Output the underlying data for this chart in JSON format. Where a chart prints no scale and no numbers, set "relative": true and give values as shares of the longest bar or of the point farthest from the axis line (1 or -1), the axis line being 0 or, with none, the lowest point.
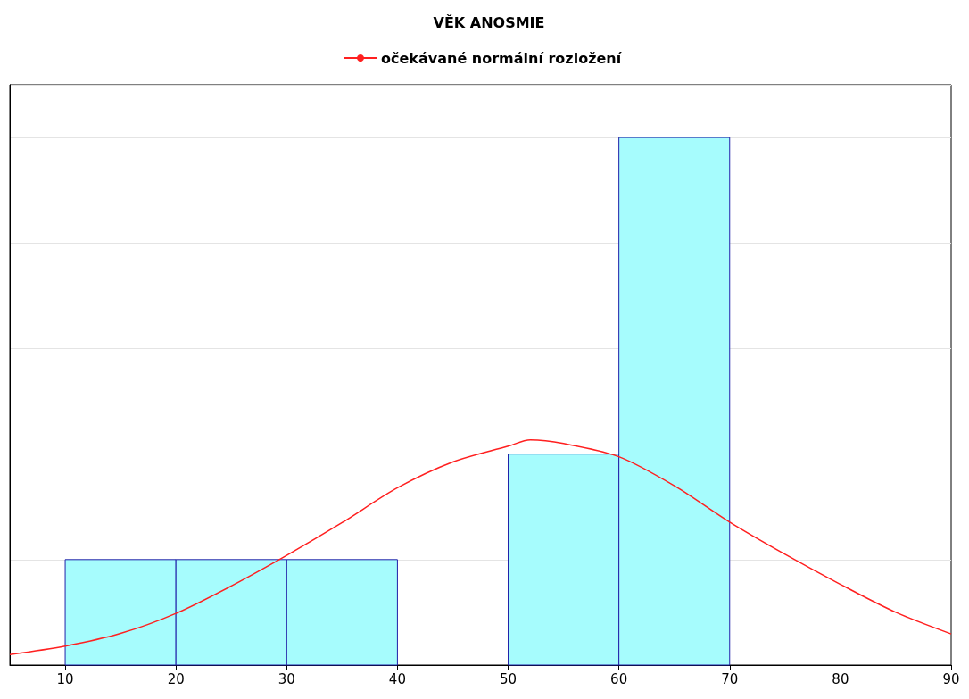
{
  "chart_data": {
    "type": "histogram",
    "title": "VĚK ANOSMIE",
    "relative": true,
    "bins": [
      10,
      20,
      30,
      40,
      50,
      60,
      70
    ],
    "values": [
      0.2,
      0.2,
      0.2,
      0,
      0.4,
      1
    ],
    "color": "#a6fcfd",
    "series": [
      {
        "type": "line",
        "name": "očekávané normální rozložení",
        "color": "#ff2020",
        "x": [
          5,
          10,
          15,
          20,
          25,
          30,
          35,
          40,
          45,
          50,
          52,
          55,
          60,
          65,
          70,
          75,
          80,
          85,
          90
        ],
        "values": [
          0.02,
          0.036,
          0.06,
          0.098,
          0.15,
          0.208,
          0.27,
          0.336,
          0.385,
          0.415,
          0.427,
          0.42,
          0.395,
          0.34,
          0.271,
          0.21,
          0.153,
          0.1,
          0.059
        ]
      }
    ],
    "xlim": [
      5,
      90
    ],
    "xticks": [
      10,
      20,
      30,
      40,
      50,
      60,
      70,
      80,
      90
    ],
    "grid": "y",
    "legend": "top",
    "marker": "none"
  }
}
